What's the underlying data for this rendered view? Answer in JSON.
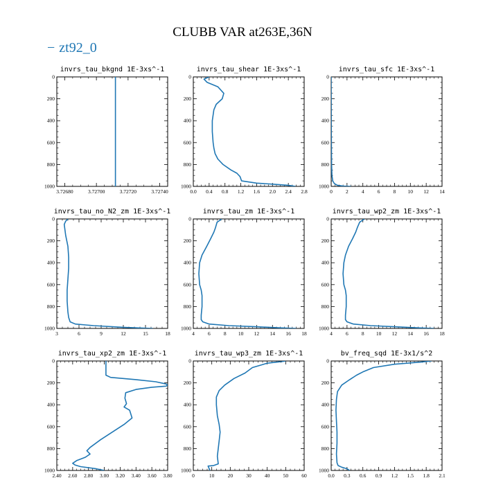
{
  "title": "CLUBB VAR at263E,36N",
  "legend": {
    "marker": "−",
    "label": "zt92_0",
    "color": "#1f77b4"
  },
  "line_color": "#1f77b4",
  "chart_data": [
    {
      "type": "line",
      "title": "invrs_tau_bkgnd   1E-3xs^-1",
      "xlim": [
        3.72675,
        3.72745
      ],
      "ylim": [
        1000,
        0
      ],
      "x_ticks": [
        {
          "v": 3.7268,
          "t": "3.72680"
        },
        {
          "v": 3.727,
          "t": "3.72700"
        },
        {
          "v": 3.7272,
          "t": "3.72720"
        },
        {
          "v": 3.7274,
          "t": "3.72740"
        }
      ],
      "y_ticks": [
        0,
        200,
        400,
        600,
        800,
        1000
      ],
      "series": [
        {
          "x": [
            3.72712,
            3.72712
          ],
          "y": [
            0,
            1000
          ]
        }
      ]
    },
    {
      "type": "line",
      "title": "invrs_tau_shear   1E-3xs^-1",
      "xlim": [
        0,
        2.8
      ],
      "ylim": [
        1000,
        0
      ],
      "x_ticks": [
        {
          "v": 0,
          "t": "0.0"
        },
        {
          "v": 0.4,
          "t": "0.4"
        },
        {
          "v": 0.8,
          "t": "0.8"
        },
        {
          "v": 1.2,
          "t": "1.2"
        },
        {
          "v": 1.6,
          "t": "1.6"
        },
        {
          "v": 2.0,
          "t": "2.0"
        },
        {
          "v": 2.4,
          "t": "2.4"
        },
        {
          "v": 2.8,
          "t": "2.8"
        }
      ],
      "y_ticks": [
        0,
        200,
        400,
        600,
        800,
        1000
      ],
      "series": [
        {
          "x": [
            0.4,
            0.27,
            0.35,
            0.62,
            0.77,
            0.73,
            0.58,
            0.52,
            0.48,
            0.48,
            0.5,
            0.52,
            0.55,
            0.62,
            0.75,
            0.95,
            1.1,
            1.18,
            1.22,
            1.6,
            2.0,
            2.4,
            2.58
          ],
          "y": [
            0,
            20,
            50,
            90,
            150,
            200,
            250,
            300,
            400,
            500,
            600,
            650,
            700,
            750,
            800,
            850,
            880,
            910,
            950,
            970,
            980,
            990,
            1000
          ]
        }
      ]
    },
    {
      "type": "line",
      "title": "invrs_tau_sfc   1E-3xs^-1",
      "xlim": [
        0,
        14
      ],
      "ylim": [
        1000,
        0
      ],
      "x_ticks": [
        {
          "v": 0,
          "t": "0"
        },
        {
          "v": 2,
          "t": "2"
        },
        {
          "v": 4,
          "t": "4"
        },
        {
          "v": 6,
          "t": "6"
        },
        {
          "v": 8,
          "t": "8"
        },
        {
          "v": 10,
          "t": "10"
        },
        {
          "v": 12,
          "t": "12"
        },
        {
          "v": 14,
          "t": "14"
        }
      ],
      "y_ticks": [
        0,
        200,
        400,
        600,
        800,
        1000
      ],
      "series": [
        {
          "x": [
            0.0,
            0.02,
            0.05,
            0.1,
            0.2,
            0.4,
            0.8,
            1.5,
            2.5
          ],
          "y": [
            0,
            500,
            800,
            900,
            950,
            975,
            990,
            997,
            1000
          ]
        }
      ]
    },
    {
      "type": "line",
      "title": "invrs_tau_no_N2_zm   1E-3xs^-1",
      "xlim": [
        3,
        18
      ],
      "ylim": [
        1000,
        0
      ],
      "x_ticks": [
        {
          "v": 3,
          "t": "3"
        },
        {
          "v": 6,
          "t": "6"
        },
        {
          "v": 9,
          "t": "9"
        },
        {
          "v": 12,
          "t": "12"
        },
        {
          "v": 15,
          "t": "15"
        },
        {
          "v": 18,
          "t": "18"
        }
      ],
      "y_ticks": [
        0,
        200,
        400,
        600,
        800,
        1000
      ],
      "series": [
        {
          "x": [
            4.5,
            4.2,
            4.0,
            4.2,
            4.5,
            4.6,
            4.6,
            4.5,
            4.4,
            4.4,
            4.5,
            4.6,
            4.8,
            5.5,
            8.0,
            12.0,
            16.0
          ],
          "y": [
            0,
            20,
            50,
            150,
            250,
            350,
            450,
            550,
            650,
            750,
            850,
            900,
            940,
            960,
            975,
            990,
            1000
          ]
        }
      ]
    },
    {
      "type": "line",
      "title": "invrs_tau_zm   1E-3xs^-1",
      "xlim": [
        4,
        18
      ],
      "ylim": [
        1000,
        0
      ],
      "x_ticks": [
        {
          "v": 4,
          "t": "4"
        },
        {
          "v": 6,
          "t": "6"
        },
        {
          "v": 8,
          "t": "8"
        },
        {
          "v": 10,
          "t": "10"
        },
        {
          "v": 12,
          "t": "12"
        },
        {
          "v": 14,
          "t": "14"
        },
        {
          "v": 16,
          "t": "16"
        },
        {
          "v": 18,
          "t": "18"
        }
      ],
      "y_ticks": [
        0,
        200,
        400,
        600,
        800,
        1000
      ],
      "series": [
        {
          "x": [
            7.6,
            7.0,
            6.8,
            6.6,
            6.2,
            5.7,
            5.1,
            4.8,
            4.7,
            4.8,
            5.0,
            5.1,
            5.1,
            5.0,
            5.0,
            5.2,
            6.0,
            8.5,
            12.0,
            15.0,
            17.0
          ],
          "y": [
            0,
            30,
            80,
            120,
            180,
            250,
            330,
            400,
            500,
            600,
            650,
            700,
            800,
            880,
            920,
            940,
            960,
            975,
            985,
            995,
            1000
          ]
        }
      ]
    },
    {
      "type": "line",
      "title": "invrs_tau_wp2_zm   1E-3xs^-1",
      "xlim": [
        4,
        18
      ],
      "ylim": [
        1000,
        0
      ],
      "x_ticks": [
        {
          "v": 4,
          "t": "4"
        },
        {
          "v": 6,
          "t": "6"
        },
        {
          "v": 8,
          "t": "8"
        },
        {
          "v": 10,
          "t": "10"
        },
        {
          "v": 12,
          "t": "12"
        },
        {
          "v": 14,
          "t": "14"
        },
        {
          "v": 16,
          "t": "16"
        },
        {
          "v": 18,
          "t": "18"
        }
      ],
      "y_ticks": [
        0,
        200,
        400,
        600,
        800,
        1000
      ],
      "series": [
        {
          "x": [
            8.2,
            7.6,
            7.3,
            7.1,
            6.7,
            6.2,
            5.8,
            5.6,
            5.5,
            5.6,
            5.8,
            5.9,
            5.9,
            5.8,
            5.8,
            6.0,
            6.8,
            9.0,
            12.0,
            15.0,
            17.0
          ],
          "y": [
            0,
            30,
            80,
            120,
            180,
            250,
            330,
            400,
            500,
            600,
            650,
            700,
            800,
            880,
            920,
            940,
            960,
            975,
            985,
            995,
            1000
          ]
        }
      ]
    },
    {
      "type": "line",
      "title": "invrs_tau_xp2_zm   1E-3xs^-1",
      "xlim": [
        2.4,
        3.8
      ],
      "ylim": [
        1000,
        0
      ],
      "x_ticks": [
        {
          "v": 2.4,
          "t": "2.40"
        },
        {
          "v": 2.6,
          "t": "2.60"
        },
        {
          "v": 2.8,
          "t": "2.80"
        },
        {
          "v": 3.0,
          "t": "3.00"
        },
        {
          "v": 3.2,
          "t": "3.20"
        },
        {
          "v": 3.4,
          "t": "3.40"
        },
        {
          "v": 3.6,
          "t": "3.60"
        },
        {
          "v": 3.8,
          "t": "3.80"
        }
      ],
      "y_ticks": [
        0,
        200,
        400,
        600,
        800,
        1000
      ],
      "series": [
        {
          "x": [
            3.02,
            3.02,
            3.08,
            3.4,
            3.65,
            3.78,
            3.8,
            3.78,
            3.6,
            3.4,
            3.27,
            3.26,
            3.28,
            3.25,
            3.32,
            3.35,
            3.25,
            3.1,
            2.95,
            2.82,
            2.78,
            2.82,
            2.76,
            2.65,
            2.6,
            2.63,
            2.7,
            2.9,
            3.0
          ],
          "y": [
            0,
            130,
            150,
            170,
            190,
            210,
            220,
            230,
            240,
            260,
            290,
            340,
            390,
            420,
            450,
            520,
            580,
            650,
            720,
            790,
            820,
            850,
            880,
            910,
            935,
            950,
            965,
            985,
            1000
          ]
        }
      ]
    },
    {
      "type": "line",
      "title": "invrs_tau_wp3_zm   1E-3xs^-1",
      "xlim": [
        0,
        60
      ],
      "ylim": [
        1000,
        0
      ],
      "x_ticks": [
        {
          "v": 0,
          "t": "0"
        },
        {
          "v": 10,
          "t": "10"
        },
        {
          "v": 20,
          "t": "20"
        },
        {
          "v": 30,
          "t": "30"
        },
        {
          "v": 40,
          "t": "40"
        },
        {
          "v": 50,
          "t": "50"
        },
        {
          "v": 60,
          "t": "60"
        }
      ],
      "y_ticks": [
        0,
        200,
        400,
        600,
        800,
        1000
      ],
      "series": [
        {
          "x": [
            50,
            48,
            40,
            32,
            28,
            22,
            17,
            14,
            12.5,
            12.5,
            13,
            14,
            14.5,
            14,
            13.5,
            13,
            13.5,
            11,
            8,
            9
          ],
          "y": [
            0,
            5,
            20,
            60,
            110,
            160,
            220,
            270,
            330,
            400,
            500,
            580,
            650,
            730,
            800,
            870,
            940,
            955,
            960,
            1000
          ]
        }
      ]
    },
    {
      "type": "line",
      "title": "bv_freq_sqd   1E-3x1/s^2",
      "xlim": [
        0,
        2.1
      ],
      "ylim": [
        1000,
        0
      ],
      "x_ticks": [
        {
          "v": 0,
          "t": "0.0"
        },
        {
          "v": 0.3,
          "t": "0.3"
        },
        {
          "v": 0.6,
          "t": "0.6"
        },
        {
          "v": 0.9,
          "t": "0.9"
        },
        {
          "v": 1.2,
          "t": "1.2"
        },
        {
          "v": 1.5,
          "t": "1.5"
        },
        {
          "v": 1.8,
          "t": "1.8"
        },
        {
          "v": 2.1,
          "t": "2.1"
        }
      ],
      "y_ticks": [
        0,
        200,
        400,
        600,
        800,
        1000
      ],
      "series": [
        {
          "x": [
            1.9,
            1.7,
            1.2,
            0.8,
            0.6,
            0.48,
            0.35,
            0.2,
            0.12,
            0.1,
            0.09,
            0.1,
            0.11,
            0.11,
            0.1,
            0.11,
            0.13,
            0.2,
            0.3,
            0.35
          ],
          "y": [
            0,
            10,
            30,
            60,
            100,
            130,
            170,
            220,
            280,
            350,
            450,
            550,
            650,
            750,
            850,
            930,
            955,
            970,
            985,
            1000
          ]
        }
      ]
    }
  ]
}
